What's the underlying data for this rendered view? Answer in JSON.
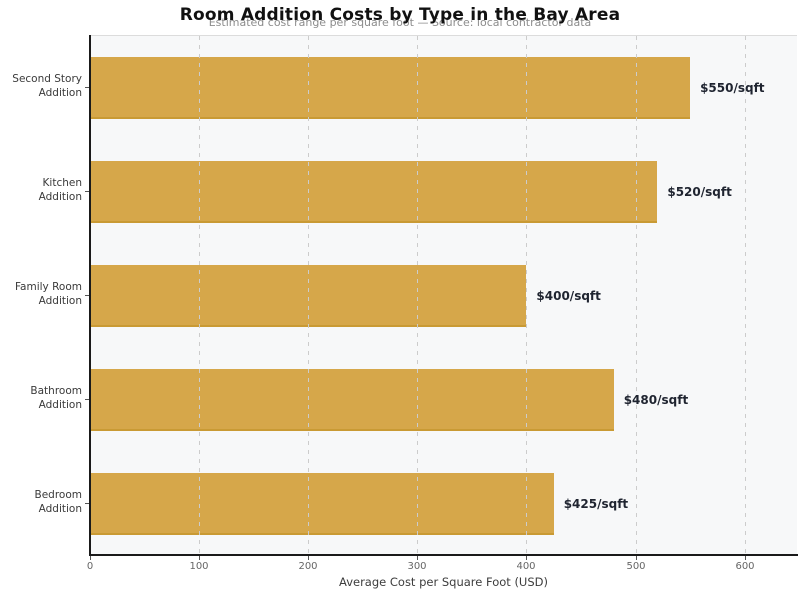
{
  "chart_data": {
    "type": "bar",
    "orientation": "horizontal",
    "title": "Room Addition Costs by Type in the Bay Area",
    "subtitle": "Estimated cost range per square foot — Source: local contractor data",
    "xlabel": "Average Cost per Square Foot (USD)",
    "categories": [
      "Second Story Addition",
      "Kitchen Addition",
      "Family Room Addition",
      "Bathroom Addition",
      "Bedroom Addition"
    ],
    "values": [
      550,
      520,
      400,
      480,
      425
    ],
    "value_labels": [
      "$550/sqft",
      "$520/sqft",
      "$400/sqft",
      "$480/sqft",
      "$425/sqft"
    ],
    "xlim": [
      0,
      648
    ],
    "xticks": [
      0,
      100,
      200,
      300,
      400,
      500,
      600
    ],
    "xtick_labels": [
      "0",
      "100",
      "200",
      "300",
      "400",
      "500",
      "600"
    ],
    "grid": "vertical-dashed",
    "legend": "none",
    "colors": {
      "bar": "#d6a74a",
      "bar_edge": "#c99a34",
      "plot_bg": "#f7f8f9",
      "grid": "#cccccc",
      "axis": "#1a1a1a",
      "tick_label": "#666666",
      "value_label": "#1f2430",
      "title": "#111111",
      "subtitle": "#8c8c8c"
    }
  }
}
